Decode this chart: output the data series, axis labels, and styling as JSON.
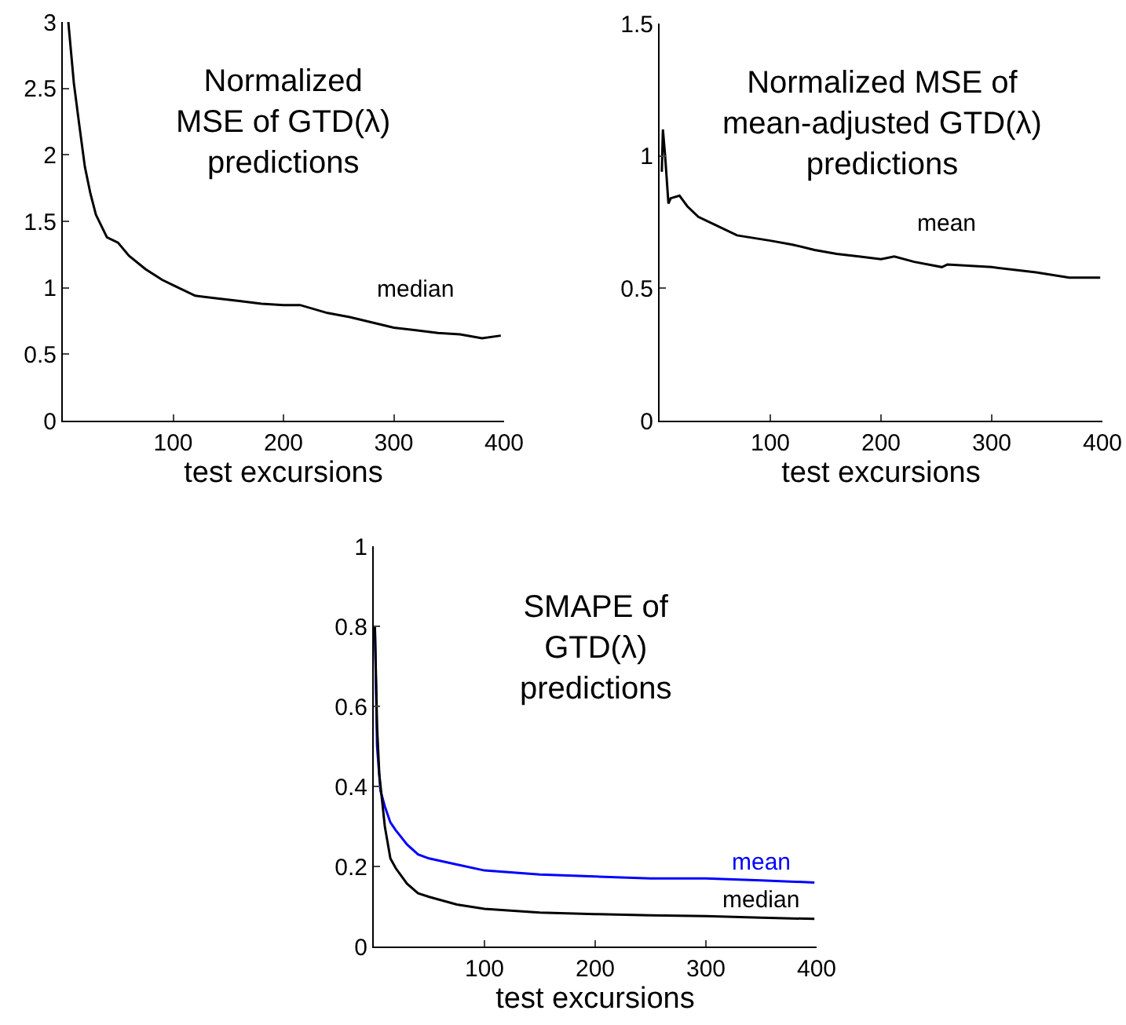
{
  "chart_data": [
    {
      "type": "line",
      "title": "Normalized\nMSE of GTD(λ)\npredictions",
      "xlabel": "test excursions",
      "xlim": [
        0,
        400
      ],
      "xticks": [
        100,
        200,
        300,
        400
      ],
      "ylim": [
        0,
        3
      ],
      "yticks": [
        0,
        0.5,
        1,
        1.5,
        2,
        2.5,
        3
      ],
      "grid": false,
      "legend": false,
      "series": [
        {
          "name": "median",
          "color": "#000000",
          "x": [
            5,
            10,
            15,
            20,
            25,
            30,
            40,
            50,
            60,
            75,
            90,
            100,
            120,
            140,
            160,
            180,
            200,
            215,
            240,
            260,
            280,
            300,
            320,
            340,
            360,
            380,
            397
          ],
          "values": [
            3,
            2.54,
            2.22,
            1.91,
            1.71,
            1.55,
            1.38,
            1.34,
            1.24,
            1.14,
            1.06,
            1.02,
            0.94,
            0.92,
            0.9,
            0.88,
            0.87,
            0.87,
            0.81,
            0.78,
            0.74,
            0.7,
            0.68,
            0.66,
            0.65,
            0.62,
            0.64
          ]
        }
      ]
    },
    {
      "type": "line",
      "title": "Normalized MSE of\nmean-adjusted GTD(λ)\npredictions",
      "xlabel": "test excursions",
      "xlim": [
        0,
        400
      ],
      "xticks": [
        100,
        200,
        300,
        400
      ],
      "ylim": [
        0,
        1.5
      ],
      "yticks": [
        0,
        0.5,
        1,
        1.5
      ],
      "grid": false,
      "legend": false,
      "series": [
        {
          "name": "mean",
          "color": "#000000",
          "x": [
            2,
            3,
            5,
            8,
            10,
            18,
            25,
            35,
            50,
            70,
            100,
            120,
            140,
            160,
            180,
            200,
            212,
            230,
            255,
            260,
            300,
            340,
            370,
            398
          ],
          "values": [
            0.94,
            1.1,
            1.0,
            0.82,
            0.84,
            0.85,
            0.81,
            0.77,
            0.74,
            0.7,
            0.68,
            0.665,
            0.645,
            0.63,
            0.62,
            0.61,
            0.62,
            0.6,
            0.58,
            0.59,
            0.58,
            0.56,
            0.54,
            0.54
          ]
        }
      ]
    },
    {
      "type": "line",
      "title": "SMAPE of\nGTD(λ)\npredictions",
      "xlabel": "test excursions",
      "xlim": [
        0,
        400
      ],
      "xticks": [
        100,
        200,
        300,
        400
      ],
      "ylim": [
        0,
        1
      ],
      "yticks": [
        0,
        0.2,
        0.4,
        0.6,
        0.8,
        1
      ],
      "grid": false,
      "legend": false,
      "series": [
        {
          "name": "mean",
          "color": "#0000ff",
          "x": [
            1,
            3,
            6,
            10,
            15,
            20,
            30,
            40,
            50,
            75,
            100,
            150,
            200,
            250,
            300,
            350,
            398
          ],
          "values": [
            0.8,
            0.5,
            0.39,
            0.35,
            0.31,
            0.29,
            0.255,
            0.23,
            0.22,
            0.205,
            0.19,
            0.18,
            0.175,
            0.17,
            0.17,
            0.165,
            0.16
          ]
        },
        {
          "name": "median",
          "color": "#000000",
          "x": [
            1,
            3,
            5,
            10,
            15,
            20,
            30,
            40,
            50,
            75,
            100,
            150,
            200,
            250,
            300,
            350,
            398
          ],
          "values": [
            0.8,
            0.55,
            0.43,
            0.3,
            0.22,
            0.195,
            0.157,
            0.133,
            0.124,
            0.105,
            0.094,
            0.085,
            0.081,
            0.078,
            0.076,
            0.072,
            0.069
          ]
        }
      ]
    }
  ]
}
